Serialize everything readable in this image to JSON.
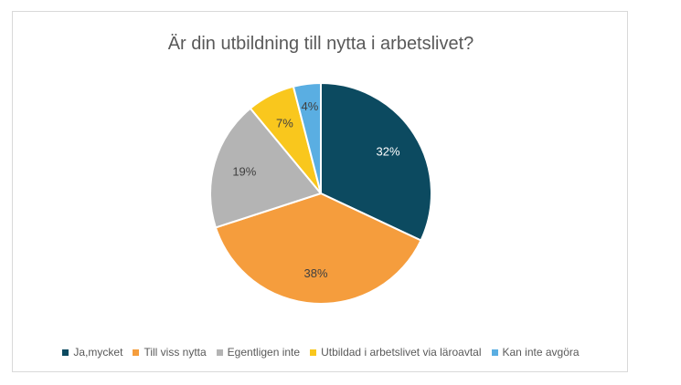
{
  "chart_data": {
    "type": "pie",
    "title": "Är din utbildning till nytta i arbetslivet?",
    "categories": [
      "Ja,mycket",
      "Till viss nytta",
      "Egentligen inte",
      "Utbildad i arbetslivet via läroavtal",
      "Kan inte avgöra"
    ],
    "values": [
      32,
      38,
      19,
      7,
      4
    ],
    "labels": [
      "32%",
      "38%",
      "19%",
      "7%",
      "4%"
    ],
    "colors": [
      "#0c4a60",
      "#f59d3d",
      "#b4b4b4",
      "#f9c71d",
      "#5aaee2"
    ],
    "label_colors": [
      "#ffffff",
      "#404040",
      "#404040",
      "#404040",
      "#404040"
    ],
    "legend_position": "bottom"
  }
}
